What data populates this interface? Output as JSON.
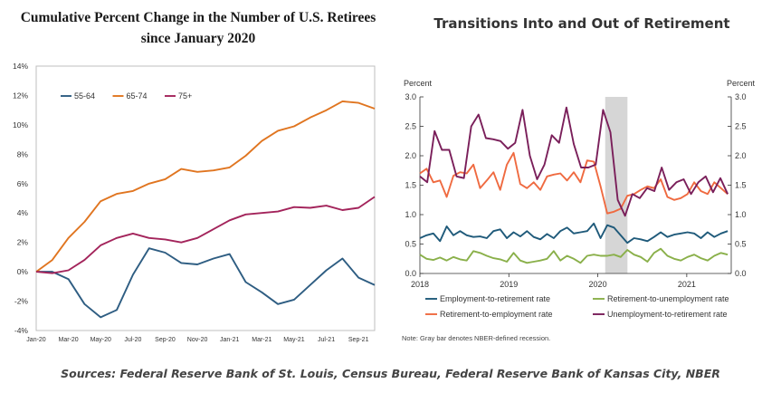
{
  "left_title_line1": "Cumulative Percent Change in the Number of U.S. Retirees",
  "left_title_line2": "since January 2020",
  "right_title": "Transitions Into and Out of Retirement",
  "footer": "Sources: Federal Reserve Bank of St. Louis, Census Bureau, Federal Reserve Bank of Kansas City, NBER",
  "chart_data": [
    {
      "type": "line",
      "title": "Cumulative Percent Change in the Number of U.S. Retirees since January 2020",
      "y_ticks": [
        "14%",
        "12%",
        "10%",
        "8%",
        "6%",
        "4%",
        "2%",
        "0%",
        "-2%",
        "-4%"
      ],
      "ylim": [
        -4,
        14
      ],
      "x_tick_labels": [
        "Jan-20",
        "Mar-20",
        "May-20",
        "Jul-20",
        "Sep-20",
        "Nov-20",
        "Jan-21",
        "Mar-21",
        "May-21",
        "Jul-21",
        "Sep-21"
      ],
      "legend_position": "top-left",
      "grid": false,
      "series": [
        {
          "name": "55-64",
          "color": "#2e5d82",
          "values": [
            0,
            0,
            -0.5,
            -2.2,
            -3.1,
            -2.6,
            -0.2,
            1.6,
            1.3,
            0.6,
            0.5,
            0.9,
            1.2,
            -0.7,
            -1.4,
            -2.2,
            -1.9,
            -0.9,
            0.1,
            0.9,
            -0.4,
            -0.9
          ]
        },
        {
          "name": "65-74",
          "color": "#e07520",
          "values": [
            0,
            0.8,
            2.3,
            3.4,
            4.8,
            5.3,
            5.5,
            6.0,
            6.3,
            7.0,
            6.8,
            6.9,
            7.1,
            7.9,
            8.9,
            9.6,
            9.9,
            10.5,
            11.0,
            11.6,
            11.5,
            11.1
          ]
        },
        {
          "name": "75+",
          "color": "#a3245b",
          "values": [
            0,
            -0.1,
            0.1,
            0.8,
            1.8,
            2.3,
            2.6,
            2.3,
            2.2,
            2.0,
            2.3,
            2.9,
            3.5,
            3.9,
            4.0,
            4.1,
            4.4,
            4.35,
            4.5,
            4.2,
            4.35,
            5.1
          ]
        }
      ]
    },
    {
      "type": "line",
      "title": "Transitions Into and Out of Retirement",
      "ylabel_left": "Percent",
      "ylabel_right": "Percent",
      "y_ticks": [
        "0.0",
        "0.5",
        "1.0",
        "1.5",
        "2.0",
        "2.5",
        "3.0"
      ],
      "ylim": [
        0,
        3
      ],
      "x_ticks": [
        "2018",
        "2019",
        "2020",
        "2021"
      ],
      "recession_shading": {
        "start": "2020-02",
        "end": "2020-04",
        "color": "#d6d6d6"
      },
      "note": "Note: Gray bar denotes NBER-defined recession.",
      "legend_position": "bottom",
      "series": [
        {
          "name": "Employment-to-retirement rate",
          "color": "#1f5a7a",
          "values": [
            0.6,
            0.65,
            0.68,
            0.55,
            0.8,
            0.65,
            0.72,
            0.65,
            0.62,
            0.63,
            0.6,
            0.72,
            0.75,
            0.6,
            0.7,
            0.63,
            0.72,
            0.62,
            0.58,
            0.67,
            0.6,
            0.72,
            0.78,
            0.68,
            0.7,
            0.72,
            0.85,
            0.6,
            0.82,
            0.78,
            0.65,
            0.52,
            0.6,
            0.58,
            0.55,
            0.62,
            0.7,
            0.62,
            0.66,
            0.68,
            0.7,
            0.68,
            0.6,
            0.7,
            0.62,
            0.68,
            0.72
          ]
        },
        {
          "name": "Retirement-to-unemployment rate",
          "color": "#8ab04a",
          "values": [
            0.32,
            0.25,
            0.23,
            0.27,
            0.22,
            0.28,
            0.24,
            0.22,
            0.38,
            0.35,
            0.3,
            0.26,
            0.24,
            0.2,
            0.35,
            0.22,
            0.18,
            0.2,
            0.22,
            0.25,
            0.38,
            0.22,
            0.3,
            0.25,
            0.18,
            0.3,
            0.32,
            0.3,
            0.3,
            0.32,
            0.28,
            0.4,
            0.32,
            0.28,
            0.2,
            0.35,
            0.42,
            0.3,
            0.25,
            0.22,
            0.28,
            0.32,
            0.26,
            0.22,
            0.3,
            0.35,
            0.32
          ]
        },
        {
          "name": "Retirement-to-employment rate",
          "color": "#ef6a40",
          "values": [
            1.7,
            1.78,
            1.55,
            1.58,
            1.3,
            1.66,
            1.72,
            1.7,
            1.85,
            1.45,
            1.58,
            1.72,
            1.42,
            1.85,
            2.05,
            1.52,
            1.45,
            1.55,
            1.42,
            1.65,
            1.68,
            1.7,
            1.58,
            1.72,
            1.55,
            1.92,
            1.9,
            1.48,
            1.02,
            1.05,
            1.1,
            1.32,
            1.35,
            1.42,
            1.48,
            1.45,
            1.6,
            1.3,
            1.25,
            1.28,
            1.35,
            1.55,
            1.4,
            1.35,
            1.55,
            1.45,
            1.35
          ]
        },
        {
          "name": "Unemployment-to-retirement rate",
          "color": "#7a1f5a",
          "values": [
            1.65,
            1.55,
            2.42,
            2.1,
            2.1,
            1.65,
            1.62,
            2.5,
            2.7,
            2.3,
            2.28,
            2.25,
            2.12,
            2.22,
            2.78,
            2.0,
            1.6,
            1.85,
            2.35,
            2.22,
            2.82,
            2.2,
            1.8,
            1.8,
            1.85,
            2.78,
            2.4,
            1.25,
            0.98,
            1.35,
            1.28,
            1.45,
            1.4,
            1.8,
            1.42,
            1.55,
            1.6,
            1.35,
            1.55,
            1.65,
            1.38,
            1.62,
            1.35
          ]
        }
      ]
    }
  ]
}
